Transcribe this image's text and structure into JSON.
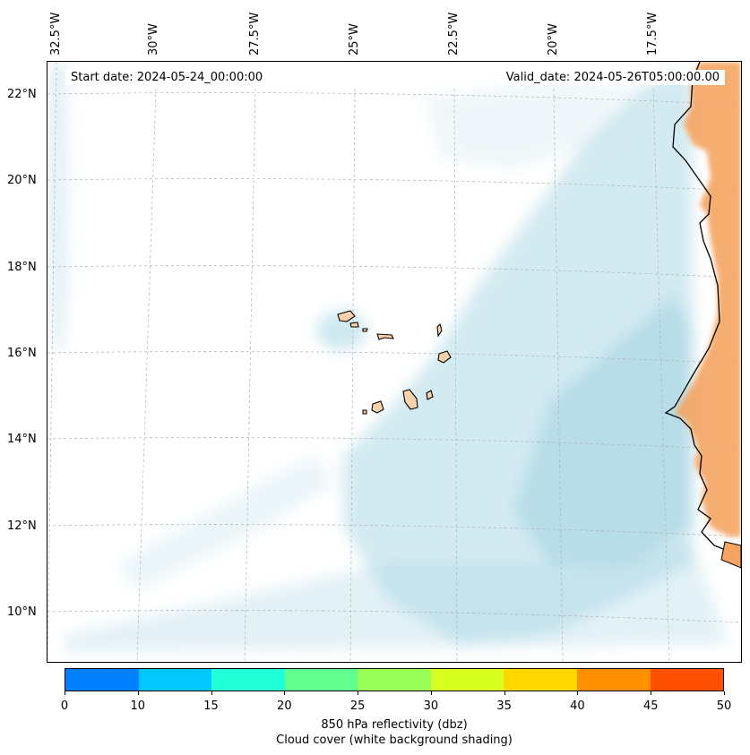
{
  "map": {
    "start_label": "Start date: 2024-05-24_00:00:00",
    "valid_label": "Valid_date: 2024-05-26T05:00:00.00",
    "lon_labels": [
      "32.5°W",
      "30°W",
      "27.5°W",
      "25°W",
      "22.5°W",
      "20°W",
      "17.5°W"
    ],
    "lat_labels": [
      "22°N",
      "20°N",
      "18°N",
      "16°N",
      "14°N",
      "12°N",
      "10°N"
    ],
    "colors": {
      "cloud": "#add8e6",
      "land": "#f4a460",
      "coast": "#000000",
      "grid": "#b0b0b0"
    }
  },
  "colorbar": {
    "ticks": [
      "0",
      "10",
      "15",
      "20",
      "25",
      "30",
      "35",
      "40",
      "45",
      "50"
    ],
    "colors": [
      "#0080ff",
      "#00c8ff",
      "#20ffd8",
      "#60ff90",
      "#98ff58",
      "#d8ff20",
      "#ffd800",
      "#ff9000",
      "#ff5000"
    ],
    "label1": "850 hPa reflectivity (dbz)",
    "label2": "Cloud cover (white background shading)"
  }
}
